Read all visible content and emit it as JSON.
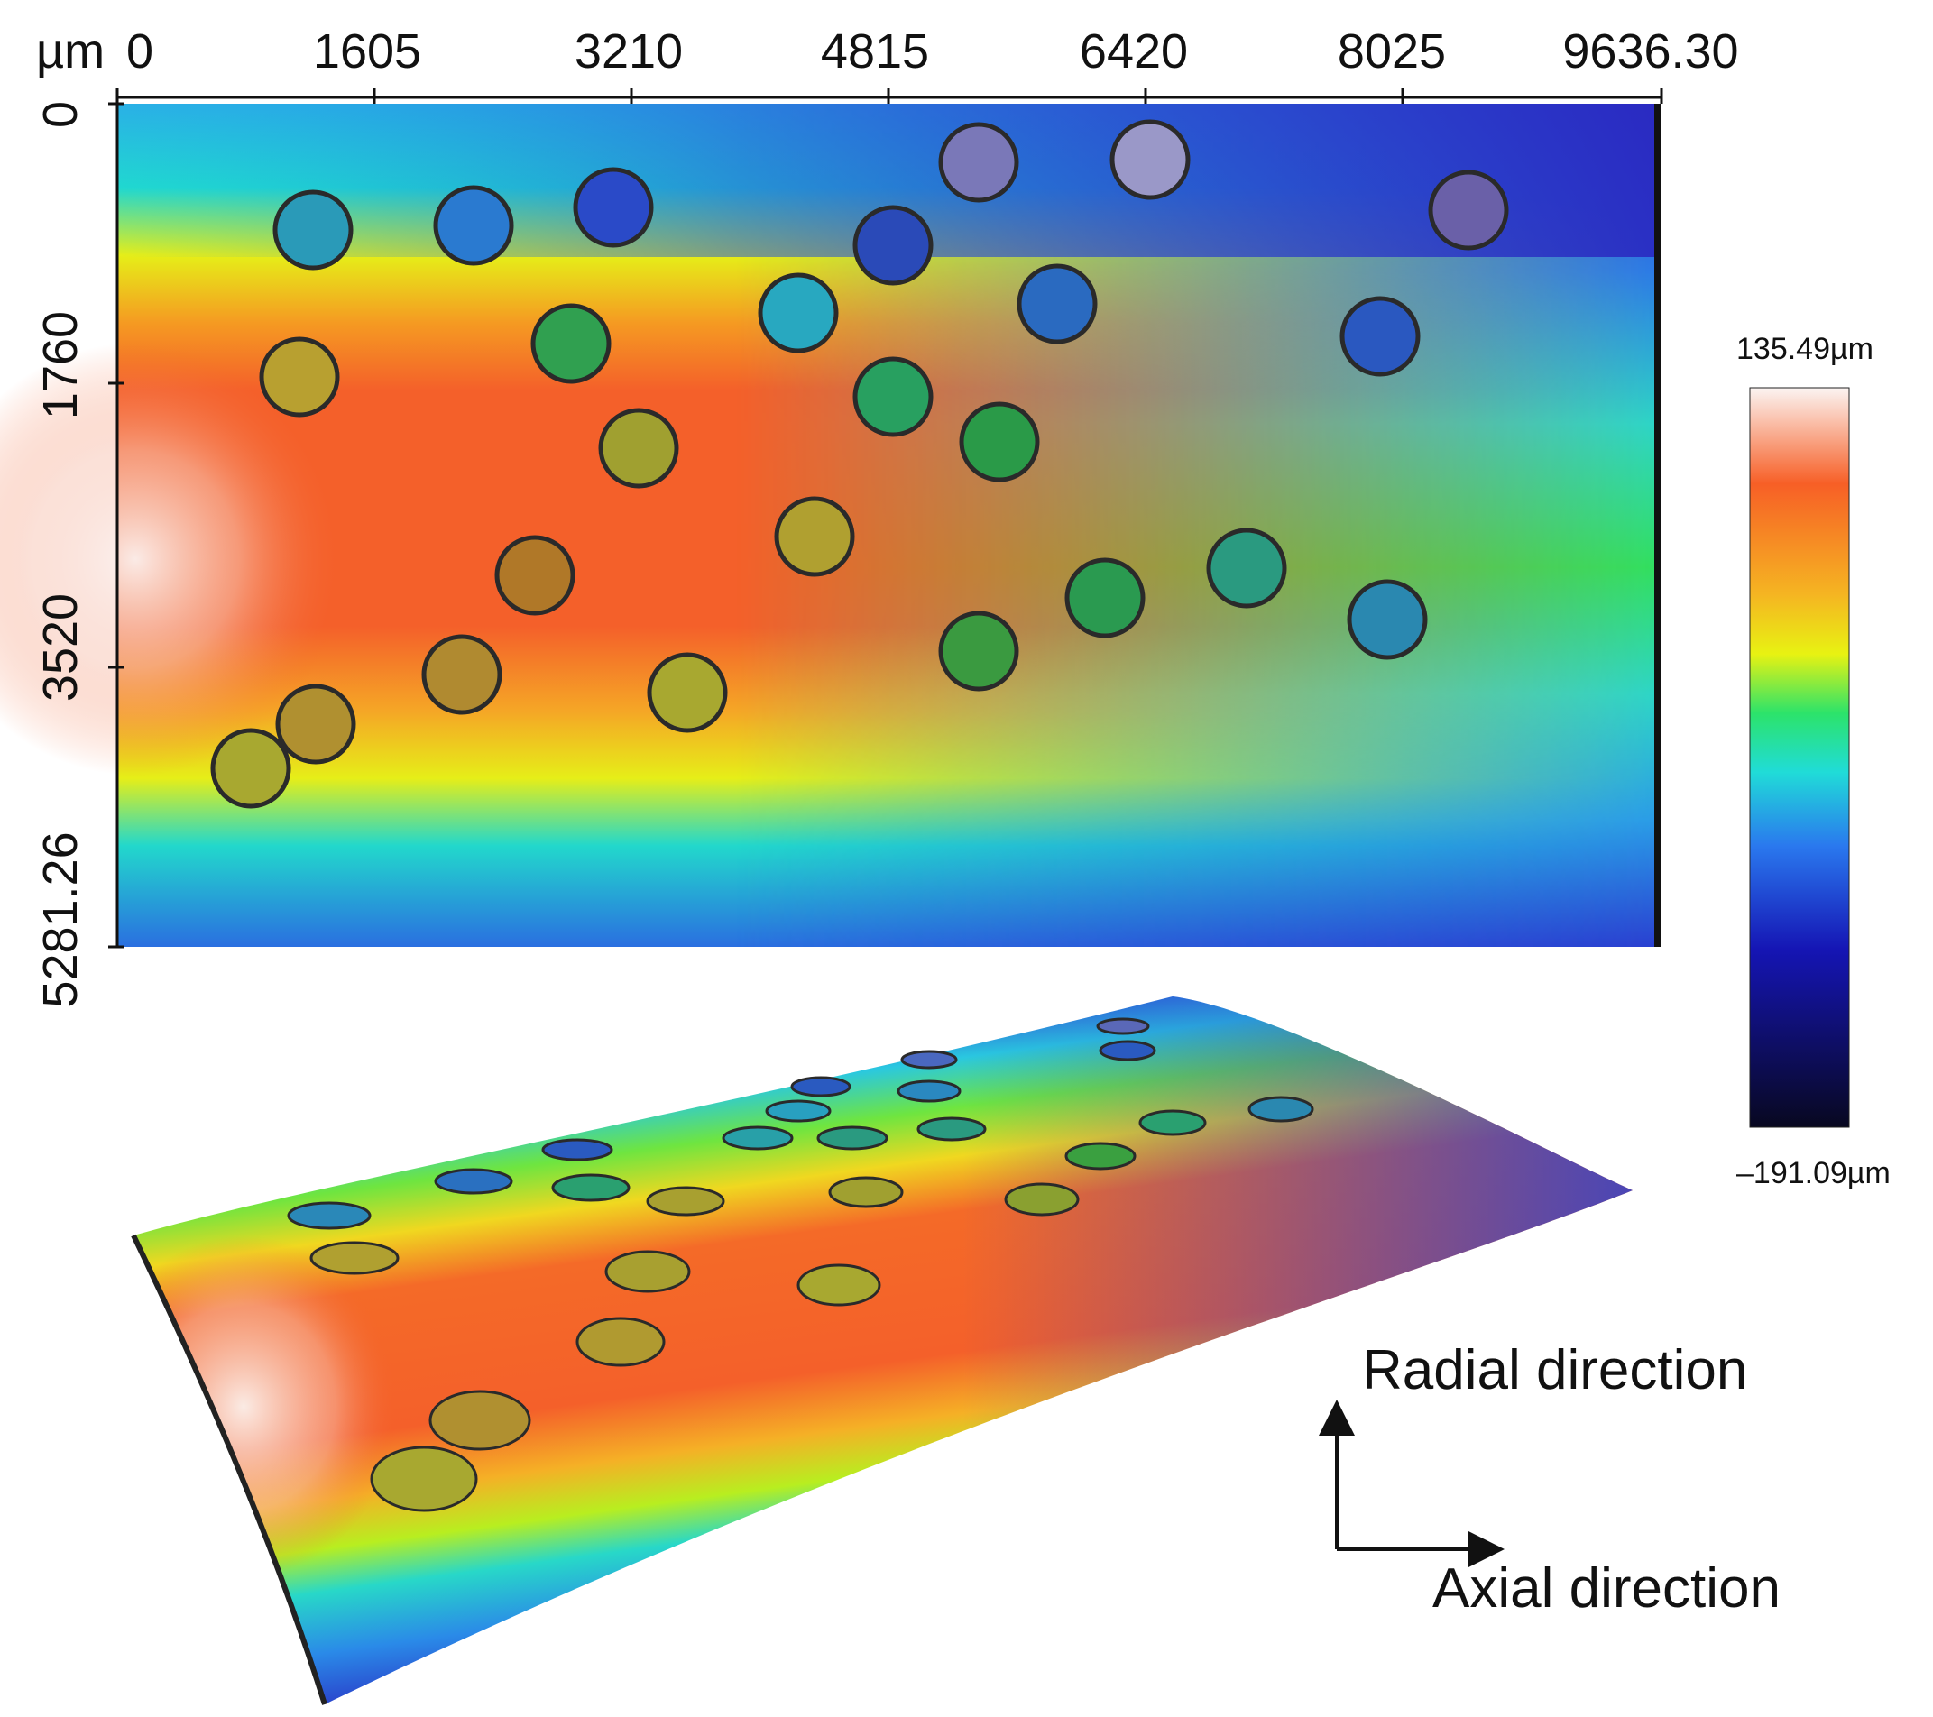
{
  "figure": {
    "x_axis": {
      "unit": "µm",
      "ticks": [
        "0",
        "1605",
        "3210",
        "4815",
        "6420",
        "8025",
        "9636.30"
      ]
    },
    "y_axis": {
      "ticks": [
        "0",
        "1760",
        "3520",
        "5281.26"
      ]
    },
    "colorbar": {
      "max_label": "135.49µm",
      "min_label": "–191.09µm",
      "stops": [
        "#fbf4f2",
        "#f75f26",
        "#f5b522",
        "#e8f212",
        "#2ce36a",
        "#20dcd8",
        "#2a78ee",
        "#1515b4",
        "#080820"
      ]
    },
    "direction_labels": {
      "radial": "Radial direction",
      "axial": "Axial direction"
    }
  }
}
